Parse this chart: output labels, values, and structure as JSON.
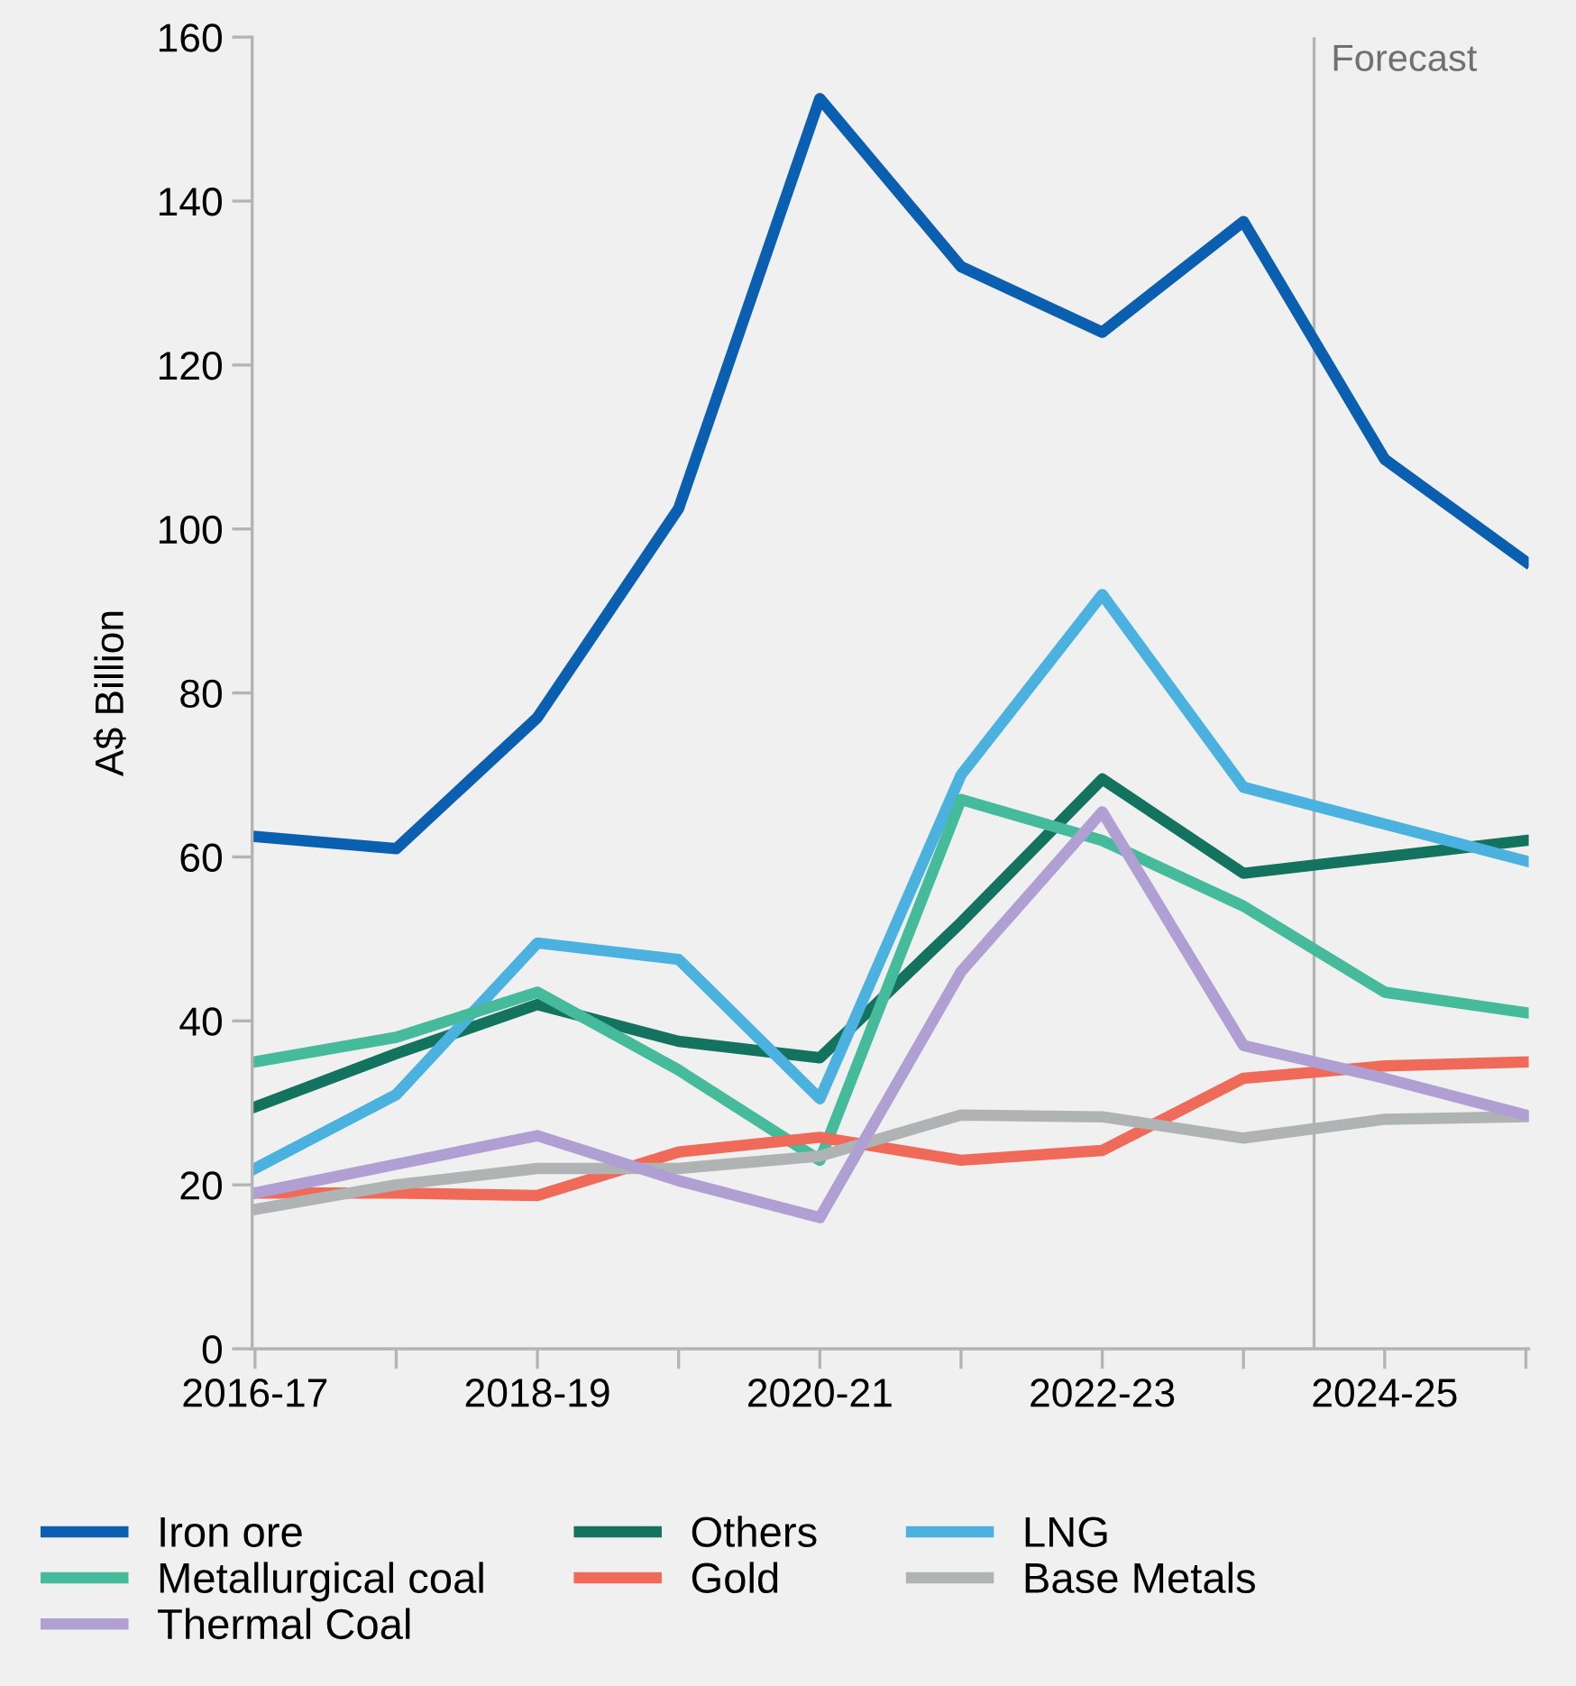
{
  "chart_data": {
    "type": "line",
    "ylabel": "A$ Billion",
    "categories": [
      "2016-17",
      null,
      "2018-19",
      null,
      "2020-21",
      null,
      "2022-23",
      null,
      "2024-25",
      null
    ],
    "ylim": [
      0,
      160
    ],
    "yticks": [
      0,
      20,
      40,
      60,
      80,
      100,
      120,
      140,
      160
    ],
    "grid": false,
    "legend": "bottom",
    "marker": "none",
    "line_style": "solid",
    "annotations": [
      "Forecast"
    ],
    "series": [
      {
        "name": "Iron ore",
        "color": "#0b5fb0",
        "values": [
          62.5,
          61,
          77,
          102.5,
          152.5,
          132,
          124,
          137.5,
          108.5,
          96
        ]
      },
      {
        "name": "Others",
        "color": "#13735f",
        "values": [
          29.5,
          36,
          42,
          37.5,
          35.5,
          52,
          69.5,
          58,
          60,
          62
        ]
      },
      {
        "name": "LNG",
        "color": "#4bb2e0",
        "values": [
          22,
          31,
          49.5,
          47.5,
          30.5,
          70,
          92,
          68.5,
          64,
          59.5
        ]
      },
      {
        "name": "Metallurgical coal",
        "color": "#45bb9c",
        "values": [
          35,
          38,
          43.5,
          34,
          23,
          67,
          62,
          54,
          43.5,
          41
        ]
      },
      {
        "name": "Gold",
        "color": "#f06a5a",
        "values": [
          19,
          19,
          18.7,
          24,
          25.8,
          23,
          24.2,
          33,
          34.5,
          35
        ]
      },
      {
        "name": "Base Metals",
        "color": "#b0b3b3",
        "values": [
          17,
          20,
          22,
          22,
          23.5,
          28.5,
          28.3,
          25.7,
          28,
          28.3
        ]
      },
      {
        "name": "Thermal Coal",
        "color": "#b09fd2",
        "values": [
          19,
          22.5,
          26,
          20.5,
          16,
          46,
          65.5,
          37,
          33,
          28.5
        ]
      }
    ]
  }
}
